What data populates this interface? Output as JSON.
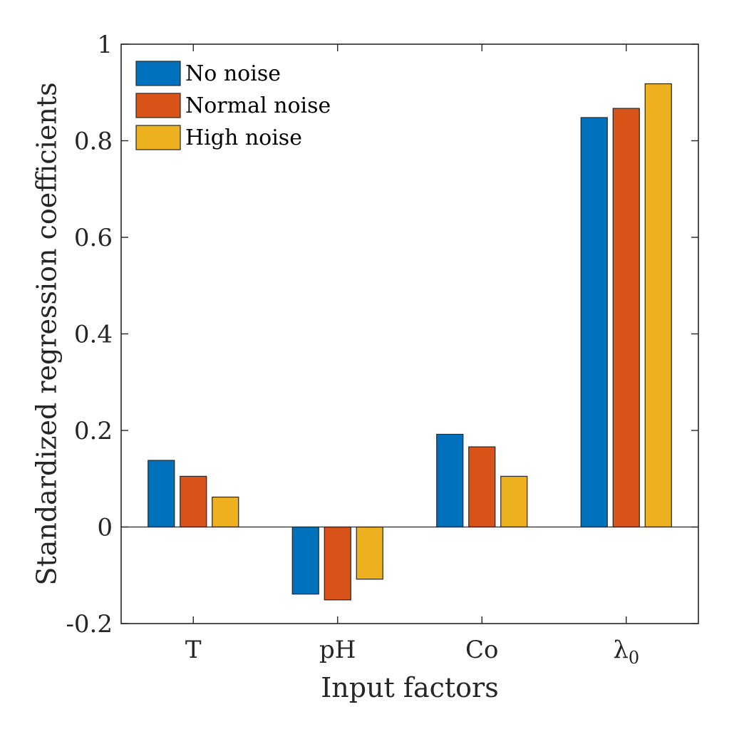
{
  "chart_data": {
    "type": "bar",
    "categories": [
      "T",
      "pH",
      "Co",
      "λ"
    ],
    "category_subscripts": [
      "",
      "",
      "",
      "0"
    ],
    "series": [
      {
        "name": "No noise",
        "color": "#0072BD",
        "values": [
          0.138,
          -0.139,
          0.192,
          0.848
        ]
      },
      {
        "name": "Normal noise",
        "color": "#D95319",
        "values": [
          0.105,
          -0.151,
          0.166,
          0.867
        ]
      },
      {
        "name": "High noise",
        "color": "#EDB120",
        "values": [
          0.062,
          -0.108,
          0.105,
          0.918
        ]
      }
    ],
    "xlabel": "Input factors",
    "ylabel": "Standardized regression coefficients",
    "ylim": [
      -0.2,
      1
    ],
    "yticks": [
      -0.2,
      0,
      0.2,
      0.4,
      0.6,
      0.8,
      1
    ],
    "ytick_labels": [
      "-0.2",
      "0",
      "0.2",
      "0.4",
      "0.6",
      "0.8",
      "1"
    ],
    "grid": false,
    "legend_position": "top-left"
  }
}
